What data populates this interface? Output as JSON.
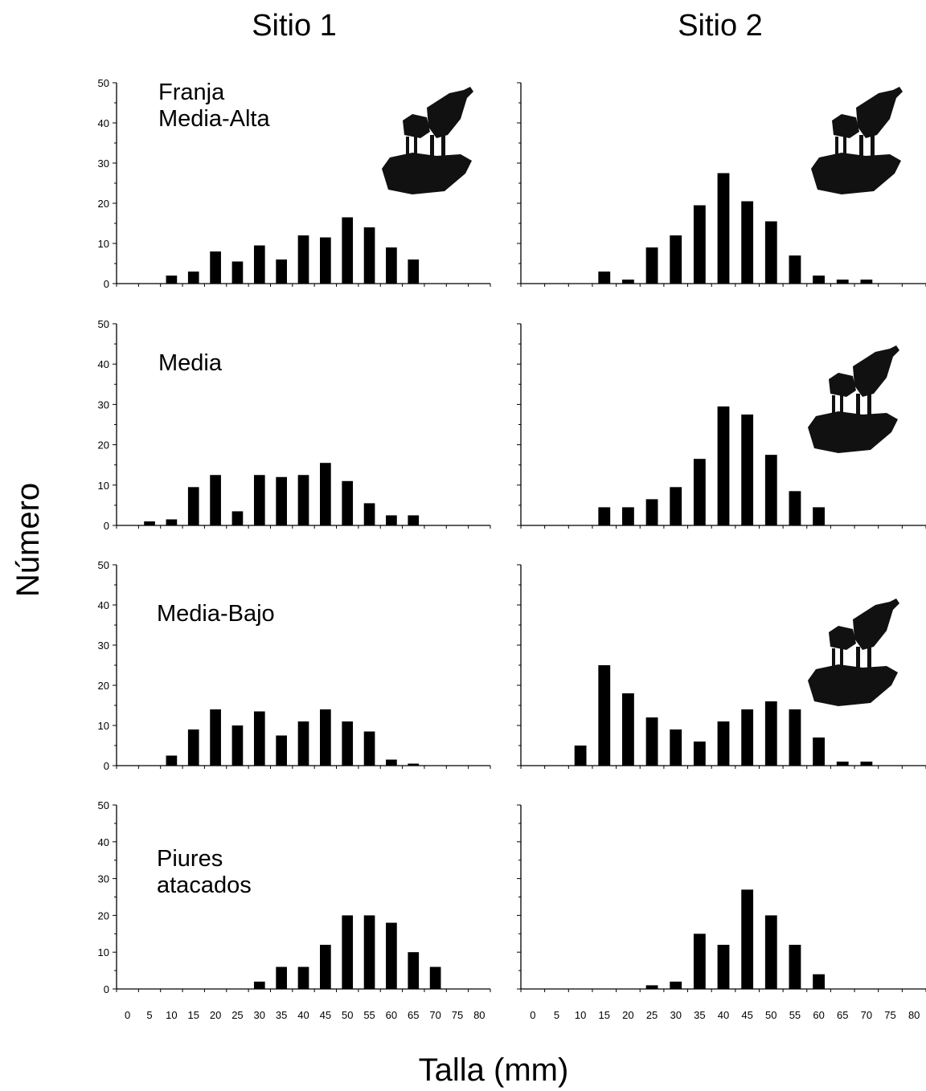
{
  "columns": [
    "Sitio 1",
    "Sitio 2"
  ],
  "xlabel": "Talla (mm)",
  "ylabel": "Número",
  "chart_data": [
    {
      "type": "bar",
      "site": "Sitio 1",
      "panel_label": [
        "Franja",
        "Media-Alta"
      ],
      "has_icon": true,
      "x": [
        0,
        5,
        10,
        15,
        20,
        25,
        30,
        35,
        40,
        45,
        50,
        55,
        60,
        65,
        70,
        75,
        80
      ],
      "values": [
        0,
        0,
        2,
        3,
        8,
        5.5,
        9.5,
        6,
        12,
        11.5,
        16.5,
        14,
        9,
        6,
        0,
        0,
        0
      ],
      "ylim": [
        0,
        50
      ],
      "yticks": [
        0,
        10,
        20,
        30,
        40,
        50
      ],
      "xlabel": "",
      "ylabel": "",
      "title": ""
    },
    {
      "type": "bar",
      "site": "Sitio 2",
      "panel_label": [],
      "has_icon": true,
      "x": [
        0,
        5,
        10,
        15,
        20,
        25,
        30,
        35,
        40,
        45,
        50,
        55,
        60,
        65,
        70,
        75,
        80
      ],
      "values": [
        0,
        0,
        0,
        3,
        1,
        9,
        12,
        19.5,
        27.5,
        20.5,
        15.5,
        7,
        2,
        1,
        1,
        0,
        0
      ],
      "ylim": [
        0,
        50
      ],
      "yticks": [],
      "xlabel": "",
      "ylabel": "",
      "title": ""
    },
    {
      "type": "bar",
      "site": "Sitio 1",
      "panel_label": [
        "Media"
      ],
      "has_icon": false,
      "x": [
        0,
        5,
        10,
        15,
        20,
        25,
        30,
        35,
        40,
        45,
        50,
        55,
        60,
        65,
        70,
        75,
        80
      ],
      "values": [
        0,
        1,
        1.5,
        9.5,
        12.5,
        3.5,
        12.5,
        12,
        12.5,
        15.5,
        11,
        5.5,
        2.5,
        2.5,
        0,
        0,
        0
      ],
      "ylim": [
        0,
        50
      ],
      "yticks": [
        0,
        10,
        20,
        30,
        40,
        50
      ],
      "xlabel": "",
      "ylabel": "",
      "title": ""
    },
    {
      "type": "bar",
      "site": "Sitio 2",
      "panel_label": [],
      "has_icon": true,
      "x": [
        0,
        5,
        10,
        15,
        20,
        25,
        30,
        35,
        40,
        45,
        50,
        55,
        60,
        65,
        70,
        75,
        80
      ],
      "values": [
        0,
        0,
        0,
        4.5,
        4.5,
        6.5,
        9.5,
        16.5,
        29.5,
        27.5,
        17.5,
        8.5,
        4.5,
        0,
        0,
        0,
        0
      ],
      "ylim": [
        0,
        50
      ],
      "yticks": [],
      "xlabel": "",
      "ylabel": "",
      "title": ""
    },
    {
      "type": "bar",
      "site": "Sitio 1",
      "panel_label": [
        "Media-Bajo"
      ],
      "has_icon": false,
      "x": [
        0,
        5,
        10,
        15,
        20,
        25,
        30,
        35,
        40,
        45,
        50,
        55,
        60,
        65,
        70,
        75,
        80
      ],
      "values": [
        0,
        0,
        2.5,
        9,
        14,
        10,
        13.5,
        7.5,
        11,
        14,
        11,
        8.5,
        1.5,
        0.5,
        0,
        0,
        0
      ],
      "ylim": [
        0,
        50
      ],
      "yticks": [
        0,
        10,
        20,
        30,
        40,
        50
      ],
      "xlabel": "",
      "ylabel": "",
      "title": ""
    },
    {
      "type": "bar",
      "site": "Sitio 2",
      "panel_label": [],
      "has_icon": true,
      "x": [
        0,
        5,
        10,
        15,
        20,
        25,
        30,
        35,
        40,
        45,
        50,
        55,
        60,
        65,
        70,
        75,
        80
      ],
      "values": [
        0,
        0,
        5,
        25,
        18,
        12,
        9,
        6,
        11,
        14,
        16,
        14,
        7,
        1,
        1,
        0,
        0
      ],
      "ylim": [
        0,
        50
      ],
      "yticks": [],
      "xlabel": "",
      "ylabel": "",
      "title": ""
    },
    {
      "type": "bar",
      "site": "Sitio 1",
      "panel_label": [
        "Piures",
        "atacados"
      ],
      "has_icon": false,
      "x": [
        0,
        5,
        10,
        15,
        20,
        25,
        30,
        35,
        40,
        45,
        50,
        55,
        60,
        65,
        70,
        75,
        80
      ],
      "values": [
        0,
        0,
        0,
        0,
        0,
        0,
        2,
        6,
        6,
        12,
        20,
        20,
        18,
        10,
        6,
        0,
        0
      ],
      "ylim": [
        0,
        50
      ],
      "yticks": [
        0,
        10,
        20,
        30,
        40,
        50
      ],
      "xticks": [
        "0",
        "5",
        "10",
        "15",
        "20",
        "25",
        "30",
        "35",
        "40",
        "45",
        "50",
        "55",
        "60",
        "65",
        "70",
        "75",
        "80"
      ],
      "xlabel": "",
      "ylabel": "",
      "title": ""
    },
    {
      "type": "bar",
      "site": "Sitio 2",
      "panel_label": [],
      "has_icon": false,
      "x": [
        0,
        5,
        10,
        15,
        20,
        25,
        30,
        35,
        40,
        45,
        50,
        55,
        60,
        65,
        70,
        75,
        80
      ],
      "values": [
        0,
        0,
        0,
        0,
        0,
        1,
        2,
        15,
        12,
        27,
        20,
        12,
        4,
        0,
        0,
        0,
        0
      ],
      "ylim": [
        0,
        50
      ],
      "yticks": [],
      "xticks": [
        "0",
        "5",
        "10",
        "15",
        "20",
        "25",
        "30",
        "35",
        "40",
        "45",
        "50",
        "55",
        "60",
        "65",
        "70",
        "75",
        "80"
      ],
      "xlabel": "",
      "ylabel": "",
      "title": ""
    }
  ]
}
